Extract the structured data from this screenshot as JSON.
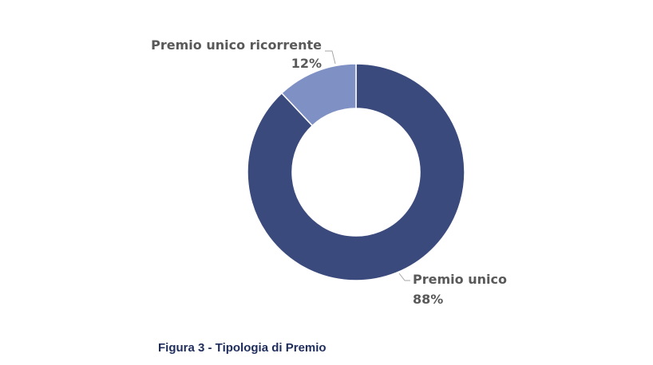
{
  "chart_data": {
    "type": "pie",
    "variant": "donut",
    "slices": [
      {
        "label": "Premio unico",
        "value": 88,
        "display": "88%",
        "color": "#3b4a7d"
      },
      {
        "label": "Premio unico ricorrente",
        "value": 12,
        "display": "12%",
        "color": "#7f90c4"
      }
    ],
    "legend": "none"
  },
  "caption": "Figura 3 - Tipologia di Premio"
}
